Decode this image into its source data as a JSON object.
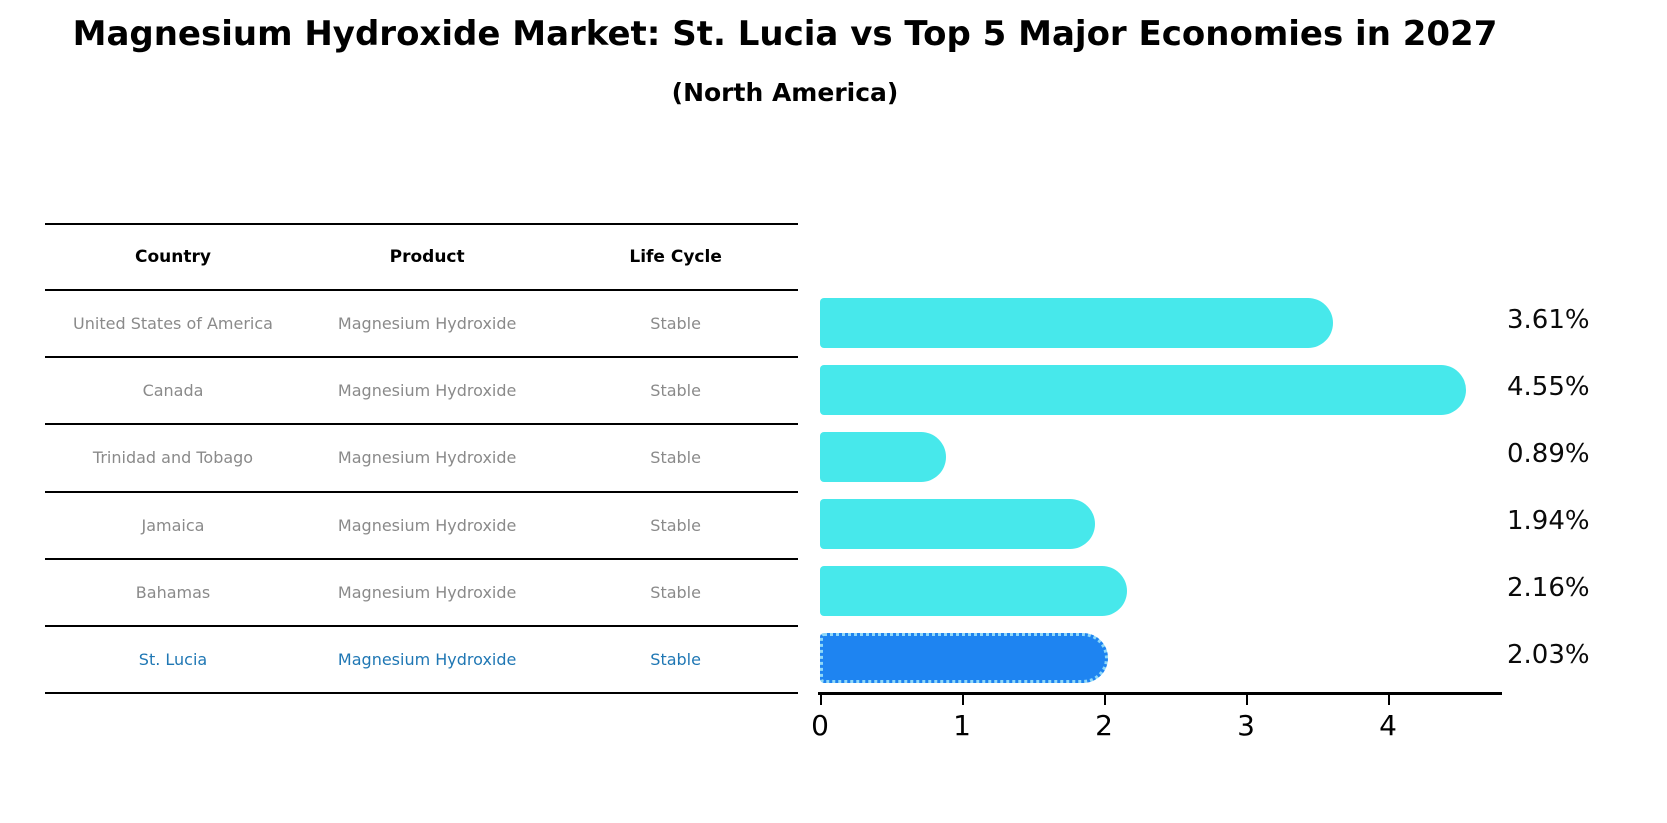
{
  "title": "Magnesium Hydroxide Market: St. Lucia vs Top 5 Major Economies in 2027",
  "subtitle": "(North America)",
  "table": {
    "headers": [
      "Country",
      "Product",
      "Life Cycle"
    ],
    "rows": [
      {
        "country": "United States of America",
        "product": "Magnesium Hydroxide",
        "life_cycle": "Stable"
      },
      {
        "country": "Canada",
        "product": "Magnesium Hydroxide",
        "life_cycle": "Stable"
      },
      {
        "country": "Trinidad and Tobago",
        "product": "Magnesium Hydroxide",
        "life_cycle": "Stable"
      },
      {
        "country": "Jamaica",
        "product": "Magnesium Hydroxide",
        "life_cycle": "Stable"
      },
      {
        "country": "Bahamas",
        "product": "Magnesium Hydroxide",
        "life_cycle": "Stable"
      },
      {
        "country": "St. Lucia",
        "product": "Magnesium Hydroxide",
        "life_cycle": "Stable"
      }
    ]
  },
  "chart_data": {
    "type": "bar",
    "orientation": "horizontal",
    "title": "Magnesium Hydroxide Market: St. Lucia vs Top 5 Major Economies in 2027",
    "subtitle": "(North America)",
    "categories": [
      "United States of America",
      "Canada",
      "Trinidad and Tobago",
      "Jamaica",
      "Bahamas",
      "St. Lucia"
    ],
    "values": [
      3.61,
      4.55,
      0.89,
      1.94,
      2.16,
      2.03
    ],
    "value_labels": [
      "3.61%",
      "4.55%",
      "0.89%",
      "1.94%",
      "2.16%",
      "2.03%"
    ],
    "xticks": [
      "0",
      "1",
      "2",
      "3",
      "4"
    ],
    "xlim": [
      0,
      4.8
    ],
    "grid": false,
    "legend": false,
    "bar_color": "#47E8EB",
    "highlight_color": "#1E84F1",
    "highlight_edge_color": "#8FD8F8",
    "highlight_text_color": "#1f77b4",
    "highlight_index": 5
  }
}
